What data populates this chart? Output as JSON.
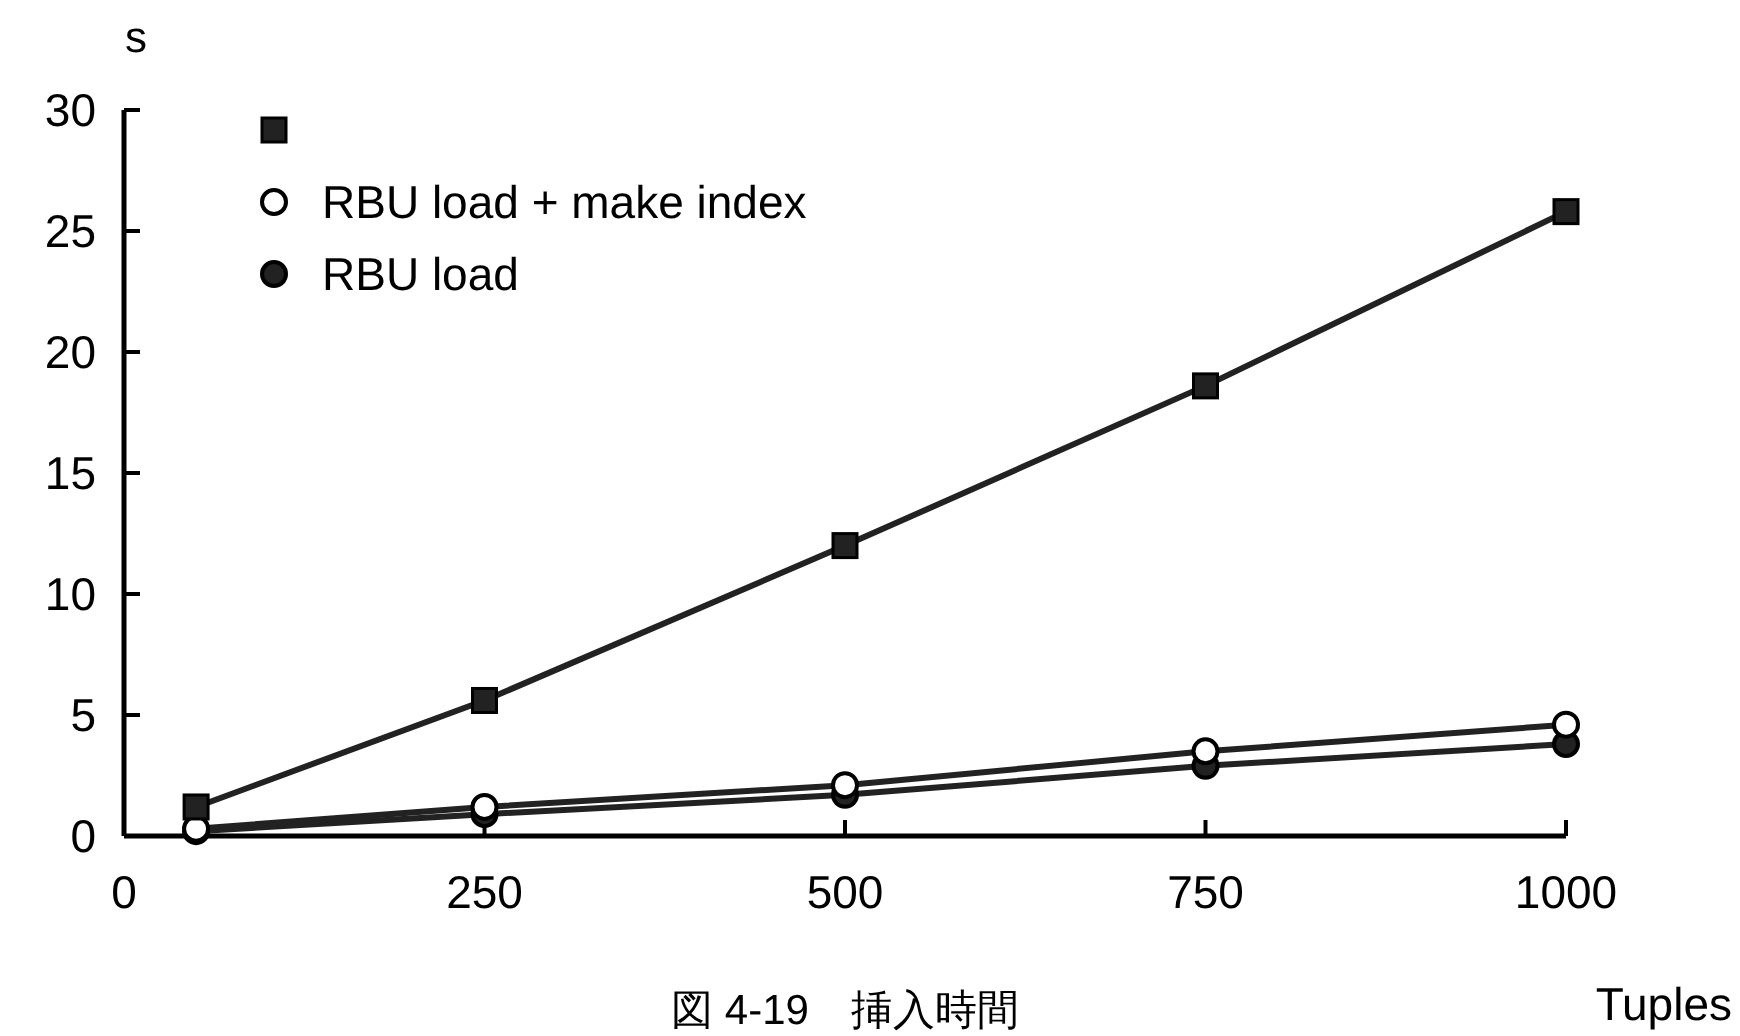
{
  "chart_data": {
    "type": "line",
    "title": "図 4-19　挿入時間",
    "xlabel": "Tuples",
    "ylabel": "s",
    "x": [
      50,
      250,
      500,
      750,
      1000
    ],
    "series": [
      {
        "color": "#222222",
        "marker": "square",
        "values": [
          1.2,
          5.6,
          12,
          18.6,
          25.8
        ]
      },
      {
        "name": "RBU load + make index",
        "color": "#ffffff",
        "marker": "circle",
        "values": [
          0.3,
          1.2,
          2.1,
          3.5,
          4.6
        ]
      },
      {
        "name": "RBU load",
        "color": "#222222",
        "marker": "circle",
        "values": [
          0.2,
          0.9,
          1.7,
          2.9,
          3.8
        ]
      }
    ],
    "xlim": [
      0,
      1000
    ],
    "xticks": [
      0,
      250,
      500,
      750,
      1000
    ],
    "ylim": [
      0,
      30
    ],
    "yticks": [
      0,
      5,
      10,
      15,
      20,
      25,
      30
    ],
    "legend": "top left",
    "grid": false,
    "line_style": "solid"
  }
}
